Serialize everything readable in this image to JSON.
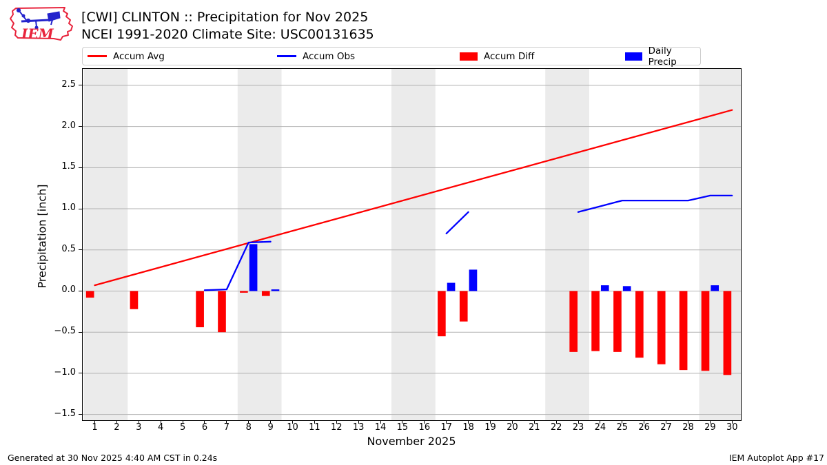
{
  "header": {
    "title": "[CWI] CLINTON :: Precipitation for Nov 2025",
    "subtitle": "NCEI 1991-2020 Climate Site: USC00131635"
  },
  "logo": {
    "text": "IEM"
  },
  "legend": {
    "items": [
      {
        "label": "Accum Avg",
        "swatch": "line",
        "color": "#ff0000"
      },
      {
        "label": "Accum Obs",
        "swatch": "line",
        "color": "#0000ff"
      },
      {
        "label": "Accum Diff",
        "swatch": "box",
        "color": "#ff0000"
      },
      {
        "label": "Daily Precip",
        "swatch": "box",
        "color": "#0000ff"
      }
    ]
  },
  "footer": {
    "generated": "Generated at 30 Nov 2025 4:40 AM CST in 0.24s",
    "app": "IEM Autoplot App #17"
  },
  "chart_data": {
    "type": "line+bar",
    "title": "[CWI] CLINTON :: Precipitation for Nov 2025",
    "subtitle": "NCEI 1991-2020 Climate Site: USC00131635",
    "xlabel": "November 2025",
    "ylabel": "Precipitation [inch]",
    "x_unit": "day_of_month",
    "xlim": [
      0.45,
      30.4
    ],
    "ylim": [
      -1.57,
      2.7
    ],
    "grid": true,
    "grid_color": "#b1b1b1",
    "weekend_band_color": "#ebebeb",
    "weekend_bands_days": [
      [
        0.5,
        2.5
      ],
      [
        7.5,
        9.5
      ],
      [
        14.5,
        16.5
      ],
      [
        21.5,
        23.5
      ],
      [
        28.5,
        30.5
      ]
    ],
    "xticks": [
      1,
      2,
      3,
      4,
      5,
      6,
      7,
      8,
      9,
      10,
      11,
      12,
      13,
      14,
      15,
      16,
      17,
      18,
      19,
      20,
      21,
      22,
      23,
      24,
      25,
      26,
      27,
      28,
      29,
      30
    ],
    "yticks": [
      {
        "v": -1.5,
        "label": "−1.5"
      },
      {
        "v": -1.0,
        "label": "−1.0"
      },
      {
        "v": -0.5,
        "label": "−0.5"
      },
      {
        "v": 0.0,
        "label": "0.0"
      },
      {
        "v": 0.5,
        "label": "0.5"
      },
      {
        "v": 1.0,
        "label": "1.0"
      },
      {
        "v": 1.5,
        "label": "1.5"
      },
      {
        "v": 2.0,
        "label": "2.0"
      },
      {
        "v": 2.5,
        "label": "2.5"
      }
    ],
    "series": [
      {
        "name": "Accum Avg",
        "type": "line",
        "color": "#ff0000",
        "points": [
          [
            1,
            0.07
          ],
          [
            30,
            2.2
          ]
        ]
      },
      {
        "name": "Accum Obs",
        "type": "line",
        "color": "#0000ff",
        "segments": [
          [
            [
              6,
              0.01
            ],
            [
              7,
              0.02
            ],
            [
              8,
              0.59
            ],
            [
              9,
              0.6
            ]
          ],
          [
            [
              17,
              0.7
            ],
            [
              18,
              0.96
            ]
          ],
          [
            [
              23,
              0.96
            ],
            [
              24,
              1.03
            ],
            [
              25,
              1.1
            ],
            [
              26,
              1.1
            ],
            [
              27,
              1.1
            ],
            [
              28,
              1.1
            ],
            [
              29,
              1.16
            ],
            [
              30,
              1.16
            ]
          ]
        ]
      },
      {
        "name": "Accum Diff",
        "type": "bar",
        "color": "#ff0000",
        "side": "left",
        "points": [
          [
            1,
            -0.08
          ],
          [
            3,
            -0.22
          ],
          [
            6,
            -0.44
          ],
          [
            7,
            -0.5
          ],
          [
            8,
            -0.02
          ],
          [
            9,
            -0.06
          ],
          [
            17,
            -0.55
          ],
          [
            18,
            -0.37
          ],
          [
            23,
            -0.74
          ],
          [
            24,
            -0.73
          ],
          [
            25,
            -0.74
          ],
          [
            26,
            -0.81
          ],
          [
            27,
            -0.89
          ],
          [
            28,
            -0.96
          ],
          [
            29,
            -0.97
          ],
          [
            30,
            -1.02
          ]
        ]
      },
      {
        "name": "Daily Precip",
        "type": "bar",
        "color": "#0000ff",
        "side": "right",
        "points": [
          [
            8,
            0.57
          ],
          [
            9,
            0.02
          ],
          [
            17,
            0.1
          ],
          [
            18,
            0.26
          ],
          [
            24,
            0.07
          ],
          [
            25,
            0.06
          ],
          [
            29,
            0.07
          ]
        ]
      }
    ]
  }
}
